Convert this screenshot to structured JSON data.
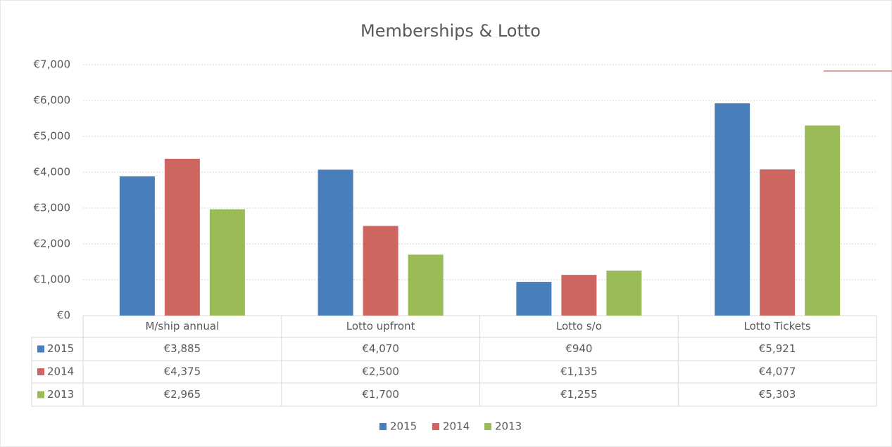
{
  "chart_data": {
    "type": "bar",
    "title": "Memberships & Lotto",
    "categories": [
      "M/ship annual",
      "Lotto upfront",
      "Lotto s/o",
      "Lotto Tickets"
    ],
    "series": [
      {
        "name": "2015",
        "color": "#4a7ebb",
        "values": [
          3885,
          4070,
          940,
          5921
        ],
        "value_labels": [
          "€3,885",
          "€4,070",
          "€940",
          "€5,921"
        ]
      },
      {
        "name": "2014",
        "color": "#cd6660",
        "values": [
          4375,
          2500,
          1135,
          4077
        ],
        "value_labels": [
          "€4,375",
          "€2,500",
          "€1,135",
          "€4,077"
        ]
      },
      {
        "name": "2013",
        "color": "#9bbb59",
        "values": [
          2965,
          1700,
          1255,
          5303
        ],
        "value_labels": [
          "€2,965",
          "€1,700",
          "€1,255",
          "€5,303"
        ]
      }
    ],
    "ylim": [
      0,
      7000
    ],
    "yticks": [
      {
        "value": 0,
        "label": "€0"
      },
      {
        "value": 1000,
        "label": "€1,000"
      },
      {
        "value": 2000,
        "label": "€2,000"
      },
      {
        "value": 3000,
        "label": "€3,000"
      },
      {
        "value": 4000,
        "label": "€4,000"
      },
      {
        "value": 5000,
        "label": "€5,000"
      },
      {
        "value": 6000,
        "label": "€6,000"
      },
      {
        "value": 7000,
        "label": "€7,000"
      }
    ],
    "grid": true,
    "legend": "bottom"
  }
}
